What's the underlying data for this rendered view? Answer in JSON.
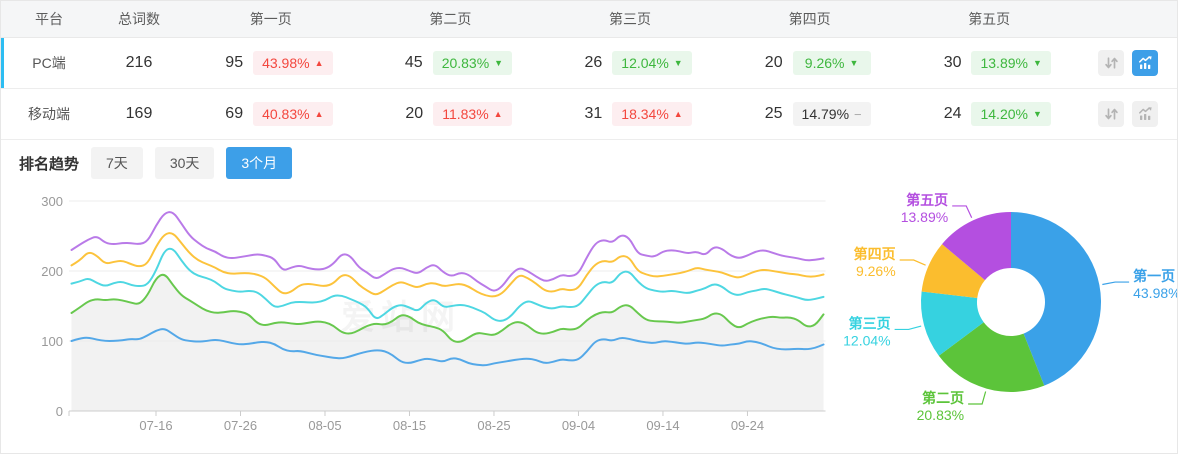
{
  "table": {
    "headers": {
      "platform": "平台",
      "total": "总词数",
      "page1": "第一页",
      "page2": "第二页",
      "page3": "第三页",
      "page4": "第四页",
      "page5": "第五页"
    },
    "rows": [
      {
        "platform": "PC端",
        "total": "216",
        "active": true,
        "chart_active": true,
        "pages": [
          {
            "count": "95",
            "pct": "43.98%",
            "dir": "up"
          },
          {
            "count": "45",
            "pct": "20.83%",
            "dir": "down"
          },
          {
            "count": "26",
            "pct": "12.04%",
            "dir": "down"
          },
          {
            "count": "20",
            "pct": "9.26%",
            "dir": "down"
          },
          {
            "count": "30",
            "pct": "13.89%",
            "dir": "down"
          }
        ]
      },
      {
        "platform": "移动端",
        "total": "169",
        "active": false,
        "chart_active": false,
        "pages": [
          {
            "count": "69",
            "pct": "40.83%",
            "dir": "up"
          },
          {
            "count": "20",
            "pct": "11.83%",
            "dir": "up"
          },
          {
            "count": "31",
            "pct": "18.34%",
            "dir": "up"
          },
          {
            "count": "25",
            "pct": "14.79%",
            "dir": "flat"
          },
          {
            "count": "24",
            "pct": "14.20%",
            "dir": "down"
          }
        ]
      }
    ]
  },
  "trend": {
    "title": "排名趋势",
    "tabs": [
      {
        "label": "7天",
        "active": false
      },
      {
        "label": "30天",
        "active": false
      },
      {
        "label": "3个月",
        "active": true
      }
    ]
  },
  "watermark": "爱站网",
  "colors": {
    "accent": "#3d9fe8",
    "active_row_border": "#2dbdf2",
    "up": "#f3473e",
    "down": "#3eb73e"
  },
  "chart_data": [
    {
      "type": "line",
      "title": "排名趋势 3个月",
      "xlabel": "",
      "ylabel": "",
      "ylim": [
        0,
        300
      ],
      "yticks": [
        0,
        100,
        200,
        300
      ],
      "grid": true,
      "x_ticks": {
        "labels": [
          "07-16",
          "07-26",
          "08-05",
          "08-15",
          "08-25",
          "09-04",
          "09-14",
          "09-24"
        ],
        "indices": [
          10,
          20,
          30,
          40,
          50,
          60,
          70,
          80
        ]
      },
      "n_points": 90,
      "series": [
        {
          "name": "第一页",
          "color": "#54a8e8",
          "values": [
            100,
            104,
            105,
            102,
            100,
            100,
            101,
            103,
            102,
            108,
            115,
            118,
            110,
            102,
            100,
            99,
            100,
            102,
            100,
            97,
            95,
            96,
            98,
            99,
            96,
            88,
            85,
            86,
            83,
            80,
            78,
            76,
            75,
            78,
            82,
            85,
            87,
            86,
            80,
            70,
            68,
            72,
            75,
            73,
            70,
            76,
            74,
            68,
            66,
            65,
            68,
            70,
            72,
            74,
            75,
            73,
            68,
            70,
            74,
            72,
            73,
            85,
            100,
            103,
            100,
            105,
            103,
            100,
            98,
            97,
            100,
            99,
            97,
            96,
            98,
            97,
            95,
            93,
            95,
            96,
            100,
            99,
            95,
            90,
            88,
            88,
            89,
            88,
            90,
            95
          ]
        },
        {
          "name": "第二页",
          "color": "#68c84e",
          "fill": "#f2f2f2",
          "values": [
            140,
            148,
            157,
            160,
            158,
            160,
            158,
            155,
            152,
            165,
            190,
            197,
            180,
            165,
            158,
            150,
            143,
            140,
            141,
            143,
            142,
            138,
            125,
            122,
            126,
            127,
            125,
            124,
            126,
            128,
            127,
            122,
            112,
            110,
            115,
            122,
            125,
            123,
            128,
            138,
            135,
            126,
            122,
            120,
            115,
            100,
            98,
            105,
            112,
            110,
            108,
            115,
            125,
            128,
            122,
            112,
            110,
            113,
            118,
            116,
            118,
            130,
            138,
            142,
            140,
            150,
            152,
            140,
            130,
            128,
            128,
            127,
            126,
            128,
            130,
            132,
            140,
            138,
            125,
            118,
            125,
            130,
            133,
            135,
            133,
            134,
            130,
            120,
            122,
            138
          ]
        },
        {
          "name": "第三页",
          "color": "#4ed7e2",
          "values": [
            182,
            185,
            190,
            183,
            178,
            183,
            185,
            180,
            178,
            180,
            200,
            230,
            233,
            215,
            200,
            193,
            190,
            185,
            175,
            172,
            170,
            172,
            170,
            160,
            148,
            150,
            155,
            156,
            155,
            155,
            158,
            165,
            165,
            160,
            155,
            148,
            130,
            138,
            148,
            152,
            148,
            142,
            155,
            160,
            148,
            150,
            152,
            150,
            145,
            140,
            130,
            128,
            135,
            150,
            158,
            153,
            148,
            146,
            150,
            148,
            150,
            165,
            180,
            185,
            182,
            198,
            200,
            185,
            175,
            172,
            170,
            172,
            170,
            168,
            172,
            175,
            182,
            178,
            168,
            165,
            170,
            172,
            175,
            172,
            168,
            165,
            162,
            158,
            160,
            163
          ]
        },
        {
          "name": "第四页",
          "color": "#fcc33c",
          "values": [
            208,
            215,
            228,
            222,
            210,
            213,
            215,
            210,
            206,
            210,
            235,
            253,
            255,
            240,
            225,
            215,
            210,
            205,
            198,
            196,
            197,
            197,
            195,
            190,
            178,
            167,
            170,
            180,
            182,
            180,
            178,
            182,
            195,
            193,
            180,
            172,
            165,
            172,
            180,
            185,
            180,
            176,
            182,
            183,
            178,
            180,
            182,
            178,
            170,
            165,
            163,
            168,
            182,
            195,
            190,
            182,
            172,
            170,
            175,
            172,
            175,
            195,
            210,
            215,
            212,
            222,
            220,
            200,
            195,
            192,
            193,
            195,
            197,
            200,
            205,
            202,
            200,
            198,
            193,
            190,
            195,
            200,
            202,
            200,
            198,
            196,
            195,
            192,
            192,
            195
          ]
        },
        {
          "name": "第五页",
          "color": "#b97ae8",
          "values": [
            230,
            238,
            245,
            250,
            240,
            238,
            240,
            240,
            238,
            242,
            265,
            283,
            285,
            268,
            250,
            240,
            232,
            228,
            220,
            218,
            220,
            222,
            224,
            222,
            218,
            200,
            205,
            208,
            204,
            202,
            203,
            210,
            225,
            222,
            205,
            198,
            188,
            195,
            203,
            205,
            200,
            196,
            205,
            210,
            198,
            192,
            198,
            195,
            185,
            178,
            170,
            178,
            195,
            205,
            200,
            192,
            185,
            188,
            195,
            192,
            196,
            220,
            240,
            245,
            240,
            252,
            248,
            225,
            222,
            220,
            228,
            230,
            228,
            225,
            228,
            222,
            235,
            232,
            222,
            218,
            222,
            228,
            230,
            226,
            222,
            220,
            218,
            215,
            216,
            218
          ]
        }
      ]
    },
    {
      "type": "pie",
      "donut": true,
      "legend_position": "labels-with-leaders",
      "slices": [
        {
          "label": "第一页",
          "value": 43.98,
          "pct": "43.98%",
          "color": "#3aa1e8"
        },
        {
          "label": "第二页",
          "value": 20.83,
          "pct": "20.83%",
          "color": "#5cc43a"
        },
        {
          "label": "第三页",
          "value": 12.04,
          "pct": "12.04%",
          "color": "#36d2e0"
        },
        {
          "label": "第四页",
          "value": 9.26,
          "pct": "9.26%",
          "color": "#fbbd2e"
        },
        {
          "label": "第五页",
          "value": 13.89,
          "pct": "13.89%",
          "color": "#b44fe0"
        }
      ]
    }
  ]
}
